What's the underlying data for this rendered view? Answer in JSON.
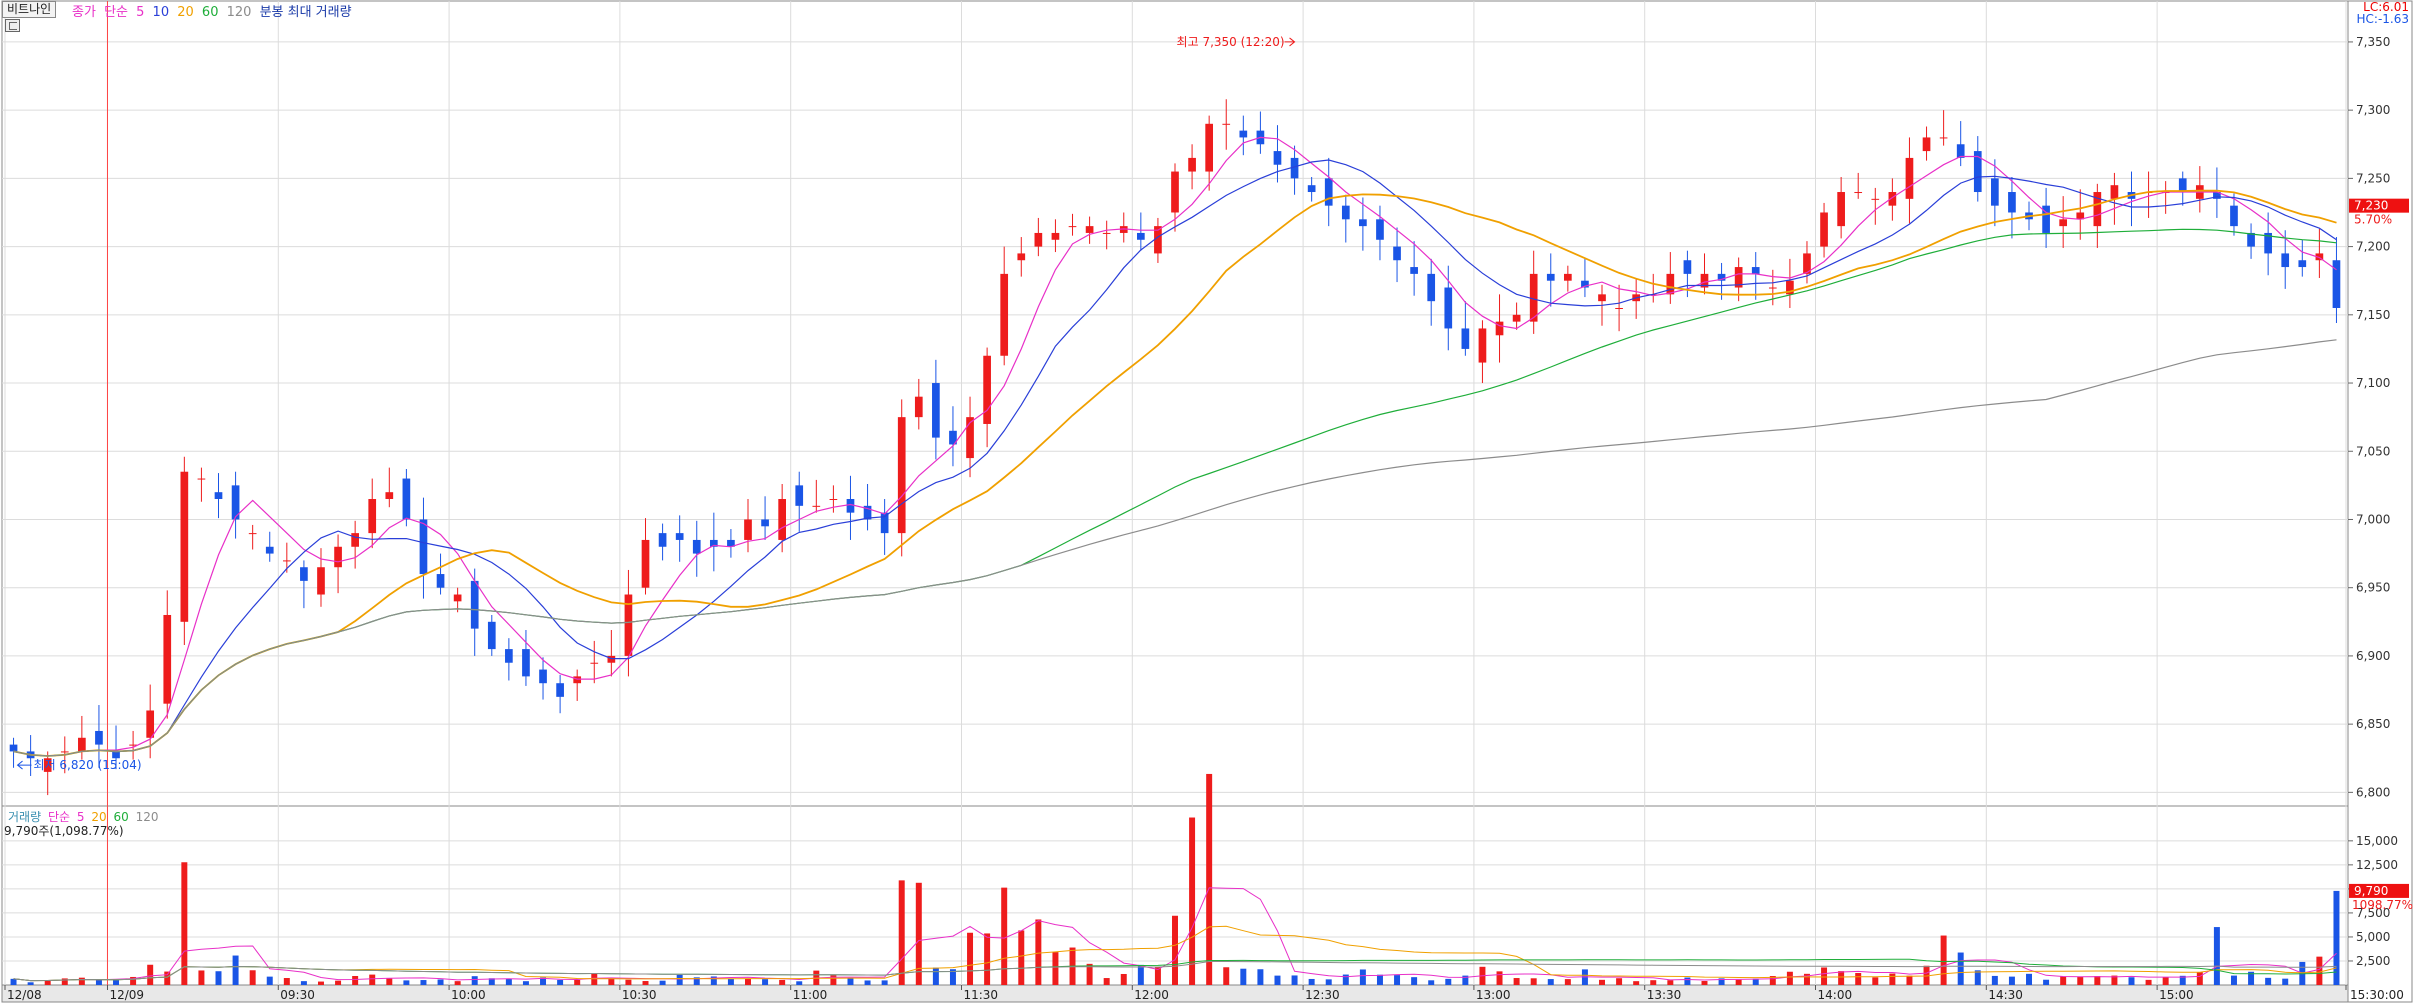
{
  "toolbar": {
    "stock_name": "비트나인",
    "legend_price_type": "종가",
    "legend_ma_type": "단순",
    "legend_periods": [
      "5",
      "10",
      "20",
      "60",
      "120"
    ],
    "legend_extra": "분봉 최대 거래량",
    "volume_title": "거래량",
    "volume_ma_type": "단순",
    "volume_periods": [
      "5",
      "20",
      "60",
      "120"
    ],
    "volume_info": "9,790주(1,098.77%)",
    "lc_text": "LC:6.01",
    "hc_text": "HC:-1.63"
  },
  "colors": {
    "up": "#ee1c1c",
    "down": "#1a55e6",
    "ma5": "#e830c8",
    "ma10": "#2a3fd8",
    "ma20": "#f0a000",
    "ma60": "#1fae3a",
    "ma120": "#8c8c8c",
    "grid": "#dcdcdc",
    "axis_text": "#333333"
  },
  "chart_data": [
    {
      "type": "candlestick",
      "title": "",
      "ylim": [
        6790,
        7380
      ],
      "y_ticks": [
        6800,
        6850,
        6900,
        6950,
        7000,
        7050,
        7100,
        7150,
        7200,
        7250,
        7300,
        7350
      ],
      "y_tick_labels": [
        "6,800",
        "6,850",
        "6,900",
        "6,950",
        "7,000",
        "7,050",
        "7,100",
        "7,150",
        "7,200",
        "7,250",
        "7,300",
        "7,350"
      ],
      "x_labels": [
        "12/08",
        "12/09",
        "09:30",
        "10:00",
        "10:30",
        "11:00",
        "11:30",
        "12:00",
        "12:30",
        "13:00",
        "13:30",
        "14:00",
        "14:30",
        "15:00",
        "15:30:00"
      ],
      "x_label_index": [
        0,
        6,
        16,
        26,
        36,
        46,
        56,
        66,
        76,
        86,
        96,
        106,
        116,
        126,
        136
      ],
      "moving_averages": [
        "5",
        "10",
        "20",
        "60",
        "120"
      ],
      "grid": true,
      "current_price": {
        "value": 7230,
        "label": "7,230",
        "change": "5.70%"
      },
      "annotations": {
        "high": {
          "text": "최고 7,350 (12:20)",
          "value": 7350
        },
        "low": {
          "text": "최저 6,820 (15:04)",
          "value": 6820
        }
      },
      "key_prices": [
        [
          6830,
          6825,
          6834,
          6840,
          6835,
          6828,
          6875,
          7040,
          7020,
          7010
        ],
        [
          6985,
          6975,
          6958,
          6970,
          6990,
          7025,
          7000,
          6965,
          6945,
          6925
        ],
        [
          6900,
          6885,
          6880,
          6870,
          6895,
          6910,
          6990,
          6985,
          6975,
          6980
        ],
        [
          6990,
          7000,
          7010,
          7015,
          7012,
          7000,
          6990,
          7120,
          7060,
          7060
        ],
        [
          7100,
          7180,
          7200,
          7210,
          7215,
          7210,
          7210,
          7200,
          7260,
          7275
        ],
        [
          7300,
          7280,
          7260,
          7240,
          7230,
          7215,
          7210,
          7200,
          7180,
          7150
        ],
        [
          7125,
          7140,
          7150,
          7180,
          7185,
          7170,
          7165,
          7160,
          7170,
          7180
        ],
        [
          7178,
          7180,
          7175,
          7170,
          7195,
          7230,
          7240,
          7230,
          7250,
          7285
        ],
        [
          7290,
          7250,
          7225,
          7215,
          7215,
          7225,
          7240,
          7245,
          7240,
          7245
        ],
        [
          7240,
          7240,
          7215,
          7195,
          7190,
          7185,
          7230
        ]
      ]
    },
    {
      "type": "bar",
      "title": "거래량",
      "ylim": [
        0,
        18000
      ],
      "y_ticks": [
        2500,
        5000,
        7500,
        10000,
        12500,
        15000
      ],
      "y_tick_labels": [
        "2,500",
        "5,000",
        "7,500",
        "10,000",
        "12,500",
        "15,000"
      ],
      "moving_averages": [
        "5",
        "20",
        "60",
        "120"
      ],
      "current_volume": {
        "value": 9790,
        "label": "9,790",
        "ratio": "1098.77%"
      },
      "key_volumes": [
        [
          600,
          400,
          500,
          700,
          600,
          800,
          2000,
          14000,
          1200,
          3000
        ],
        [
          1500,
          800,
          600,
          500,
          700,
          900,
          500,
          400,
          600,
          700
        ],
        [
          800,
          500,
          1200,
          600,
          900,
          500,
          400,
          700,
          1100,
          900
        ],
        [
          800,
          600,
          500,
          1400,
          900,
          700,
          800,
          11000,
          3000,
          1500
        ],
        [
          8000,
          12000,
          6000,
          2500,
          3000,
          1200,
          900,
          1500,
          6000,
          16500
        ],
        [
          3000,
          2000,
          1500,
          900,
          700,
          800,
          1500,
          900,
          700,
          800
        ],
        [
          1400,
          2200,
          900,
          700,
          600,
          1200,
          800,
          600,
          700,
          900
        ],
        [
          600,
          800,
          700,
          1100,
          1200,
          1800,
          1100,
          900,
          1000,
          2500
        ],
        [
          4200,
          1400,
          1000,
          900,
          800,
          900,
          1200,
          800,
          700,
          700
        ],
        [
          1400,
          5000,
          1500,
          900,
          1100,
          2500,
          9790
        ]
      ]
    }
  ]
}
